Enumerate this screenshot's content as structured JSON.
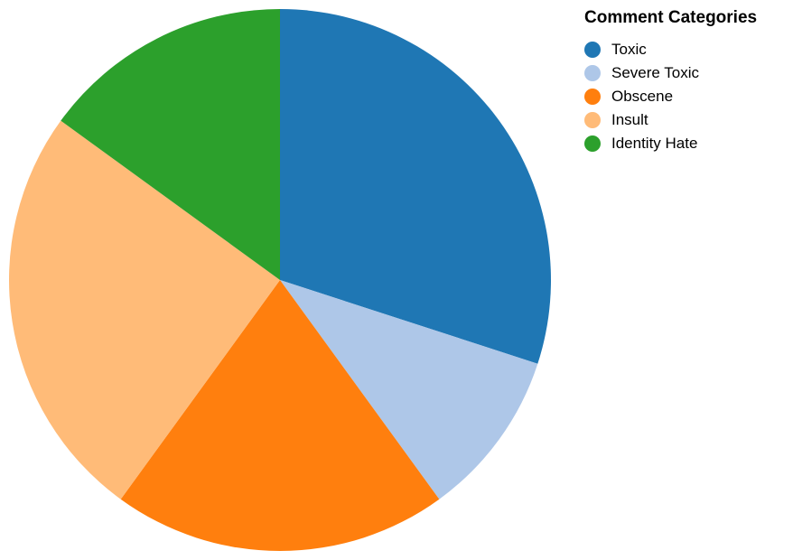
{
  "chart_data": {
    "type": "pie",
    "categories": [
      "Toxic",
      "Severe Toxic",
      "Obscene",
      "Insult",
      "Identity Hate"
    ],
    "values": [
      30,
      10,
      20,
      25,
      15
    ],
    "colors": [
      "#1f77b4",
      "#aec7e8",
      "#ff7f0e",
      "#ffbb78",
      "#2ca02c"
    ],
    "legend_title": "Comment Categories",
    "legend_position": "top-right"
  }
}
